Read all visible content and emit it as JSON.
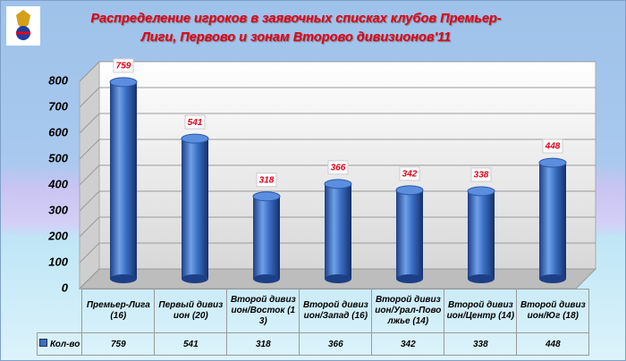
{
  "chart_data": {
    "type": "bar",
    "title": "Распределение игроков в заявочных списках клубов Премьер-Лиги, Первово и зонам Второво дивизионов'11",
    "categories": [
      "Премьер-Лига (16)",
      "Первый дивизион (20)",
      "Второй дивизион/Восток (13)",
      "Второй дивизион/Запад (16)",
      "Второй дивизион/Урал-Поволжье (14)",
      "Второй дивизион/Центр (14)",
      "Второй дивизион/Юг (18)"
    ],
    "series": [
      {
        "name": "Кол-во",
        "color": "#3a6fc4",
        "values": [
          759,
          541,
          318,
          366,
          342,
          338,
          448
        ]
      }
    ],
    "ylim": [
      0,
      800
    ],
    "yticks": [
      0,
      100,
      200,
      300,
      400,
      500,
      600,
      700,
      800
    ],
    "grid": true
  }
}
